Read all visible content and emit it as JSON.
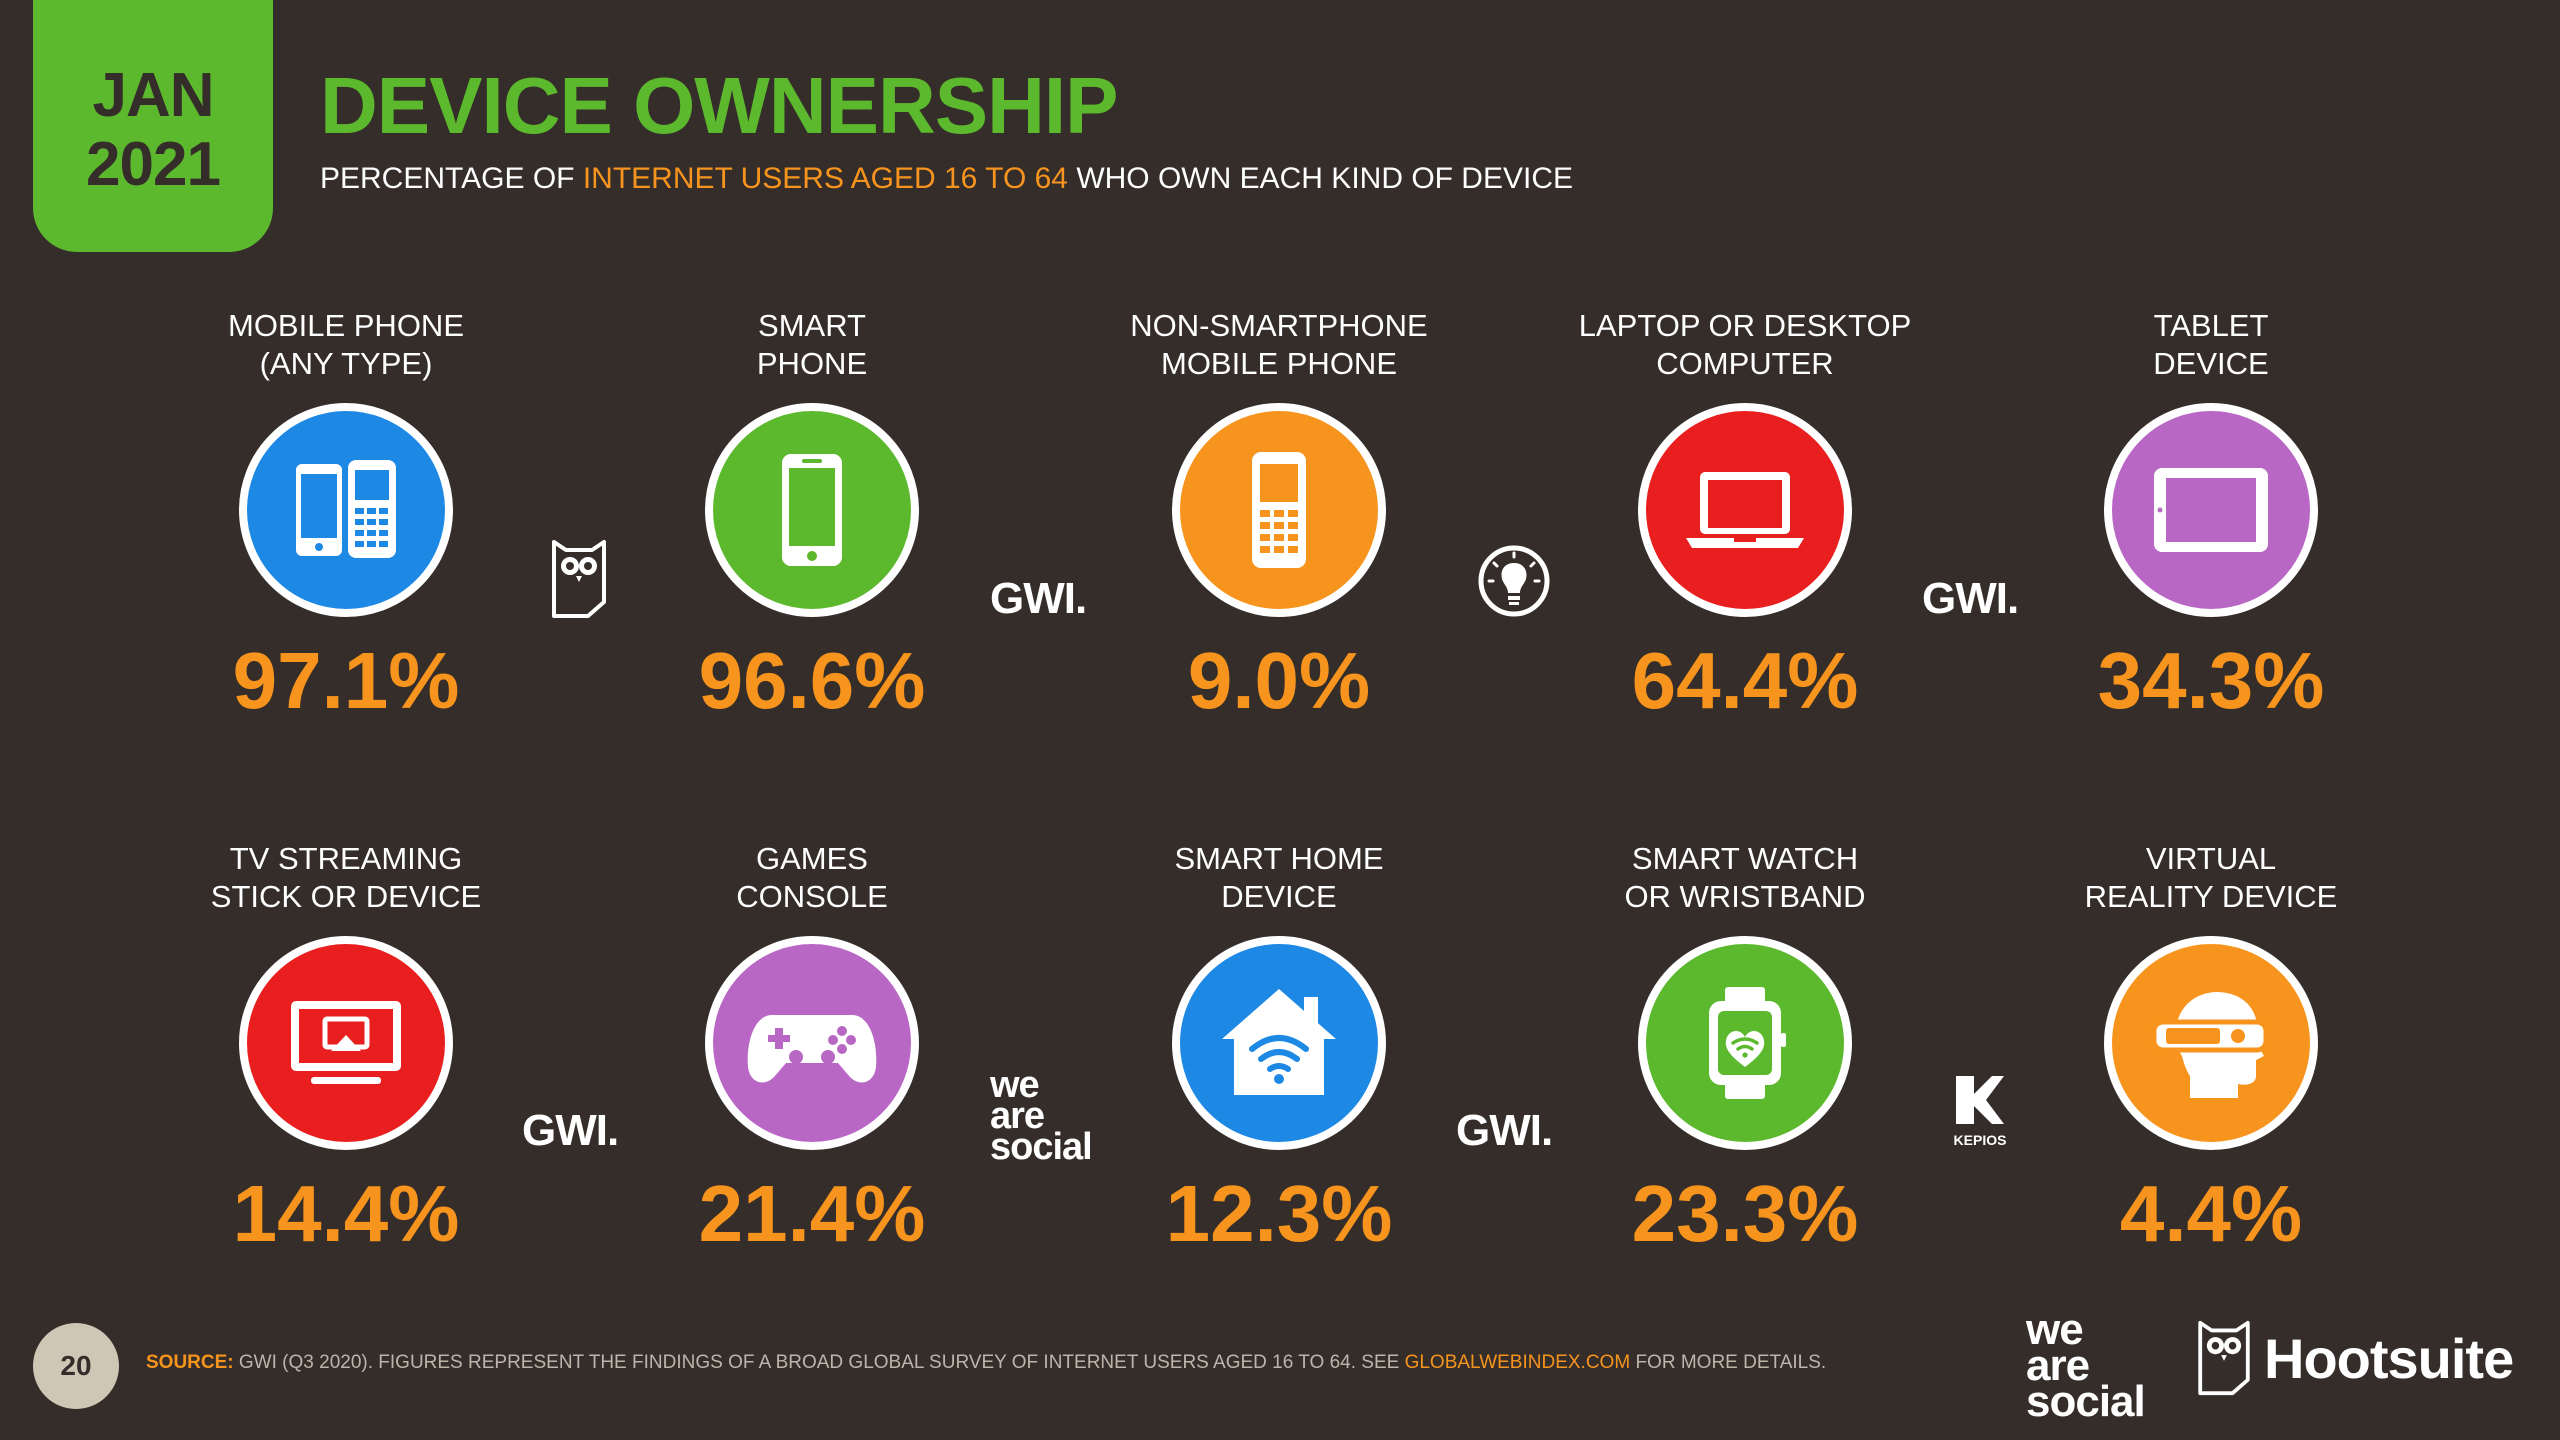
{
  "header": {
    "month": "JAN",
    "year": "2021",
    "title": "DEVICE OWNERSHIP",
    "subtitle_pre": "PERCENTAGE OF ",
    "subtitle_highlight": "INTERNET USERS AGED 16 TO 64",
    "subtitle_post": " WHO OWN EACH KIND OF DEVICE"
  },
  "devices": [
    {
      "label1": "MOBILE PHONE",
      "label2": "(ANY TYPE)",
      "value": "97.1%",
      "color": "#1e88e5",
      "icon": "mobile-phones-icon"
    },
    {
      "label1": "SMART",
      "label2": "PHONE",
      "value": "96.6%",
      "color": "#5cb82d",
      "icon": "smartphone-icon"
    },
    {
      "label1": "NON-SMARTPHONE",
      "label2": "MOBILE PHONE",
      "value": "9.0%",
      "color": "#f7941d",
      "icon": "feature-phone-icon"
    },
    {
      "label1": "LAPTOP OR DESKTOP",
      "label2": "COMPUTER",
      "value": "64.4%",
      "color": "#e91e1e",
      "icon": "laptop-icon"
    },
    {
      "label1": "TABLET",
      "label2": "DEVICE",
      "value": "34.3%",
      "color": "#b868c4",
      "icon": "tablet-icon"
    },
    {
      "label1": "TV STREAMING",
      "label2": "STICK OR DEVICE",
      "value": "14.4%",
      "color": "#e91e1e",
      "icon": "tv-streaming-icon"
    },
    {
      "label1": "GAMES",
      "label2": "CONSOLE",
      "value": "21.4%",
      "color": "#b868c4",
      "icon": "gamepad-icon"
    },
    {
      "label1": "SMART HOME",
      "label2": "DEVICE",
      "value": "12.3%",
      "color": "#1e88e5",
      "icon": "smart-home-icon"
    },
    {
      "label1": "SMART WATCH",
      "label2": "OR WRISTBAND",
      "value": "23.3%",
      "color": "#5cb82d",
      "icon": "smartwatch-icon"
    },
    {
      "label1": "VIRTUAL",
      "label2": "REALITY DEVICE",
      "value": "4.4%",
      "color": "#f7941d",
      "icon": "vr-headset-icon"
    }
  ],
  "logos": {
    "gwi": "GWI.",
    "we": "we",
    "are": "are",
    "social": "social",
    "kepios": "KEPIOS",
    "hootsuite": "Hootsuite"
  },
  "footer": {
    "page_number": "20",
    "source_label": "SOURCE:",
    "source_text": " GWI (Q3 2020). FIGURES REPRESENT THE FINDINGS OF A BROAD GLOBAL SURVEY OF INTERNET USERS AGED 16 TO 64. SEE ",
    "source_link": "GLOBALWEBINDEX.COM",
    "source_tail": " FOR MORE DETAILS."
  },
  "colors": {
    "background": "#342d2a",
    "accent_green": "#5cb82d",
    "accent_orange": "#f7941d"
  }
}
